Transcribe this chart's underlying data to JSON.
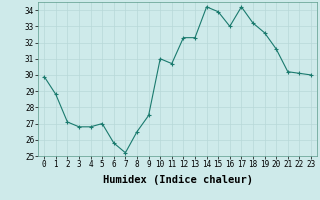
{
  "x": [
    0,
    1,
    2,
    3,
    4,
    5,
    6,
    7,
    8,
    9,
    10,
    11,
    12,
    13,
    14,
    15,
    16,
    17,
    18,
    19,
    20,
    21,
    22,
    23
  ],
  "y": [
    29.9,
    28.8,
    27.1,
    26.8,
    26.8,
    27.0,
    25.8,
    25.2,
    26.5,
    27.5,
    31.0,
    30.7,
    32.3,
    32.3,
    34.2,
    33.9,
    33.0,
    34.2,
    33.2,
    32.6,
    31.6,
    30.2,
    30.1,
    30.0
  ],
  "xlabel": "Humidex (Indice chaleur)",
  "ylim": [
    25,
    34.5
  ],
  "yticks": [
    25,
    26,
    27,
    28,
    29,
    30,
    31,
    32,
    33,
    34
  ],
  "xticks": [
    0,
    1,
    2,
    3,
    4,
    5,
    6,
    7,
    8,
    9,
    10,
    11,
    12,
    13,
    14,
    15,
    16,
    17,
    18,
    19,
    20,
    21,
    22,
    23
  ],
  "line_color": "#1a7a6e",
  "marker_color": "#1a7a6e",
  "bg_color": "#ceeaea",
  "grid_color": "#b8d8d8",
  "tick_label_fontsize": 5.5,
  "xlabel_fontsize": 7.5
}
